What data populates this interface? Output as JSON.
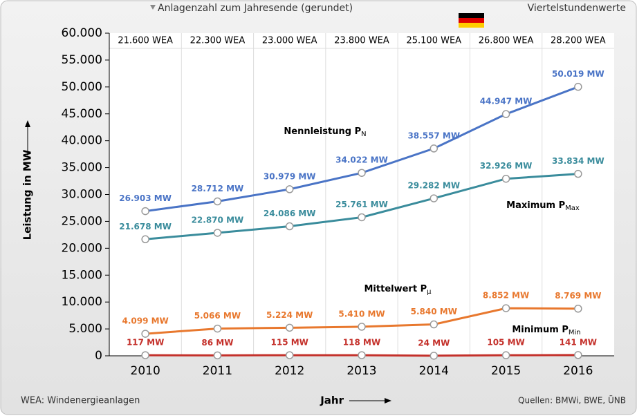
{
  "chart_data": {
    "type": "line",
    "header_left": "Anlagenzahl zum Jahresende (gerundet)",
    "header_right": "Viertelstundenwerte",
    "plant_counts": [
      "21.600 WEA",
      "22.300 WEA",
      "23.000 WEA",
      "23.800 WEA",
      "25.100 WEA",
      "26.800 WEA",
      "28.200 WEA"
    ],
    "y_label": "Leistung in MW",
    "x_label": "Jahr",
    "footnote": "WEA: Windenergieanlagen",
    "source": "Quellen: BMWi, BWE, ÜNB",
    "categories": [
      "2010",
      "2011",
      "2012",
      "2013",
      "2014",
      "2015",
      "2016"
    ],
    "ylim": [
      0,
      60000
    ],
    "yticks": [
      0,
      {
        "value": 5000,
        "label": "5.000"
      },
      {
        "value": 10000,
        "label": "10.000"
      },
      {
        "value": 15000,
        "label": "15.000"
      },
      {
        "value": 20000,
        "label": "20.000"
      },
      {
        "value": 25000,
        "label": "25.000"
      },
      {
        "value": 30000,
        "label": "30.000"
      },
      {
        "value": 35000,
        "label": "35.000"
      },
      {
        "value": 40000,
        "label": "40.000"
      },
      {
        "value": 45000,
        "label": "45.000"
      },
      {
        "value": 50000,
        "label": "50.000"
      },
      {
        "value": 55000,
        "label": "55.000"
      },
      {
        "value": 60000,
        "label": "60.000"
      }
    ],
    "grid": false,
    "series": [
      {
        "name": "Nennleistung P",
        "subscript": "N",
        "color": "#4a74c6",
        "values": [
          26903,
          28712,
          30979,
          34022,
          38557,
          44947,
          50019
        ],
        "value_labels": [
          "26.903 MW",
          "28.712 MW",
          "30.979 MW",
          "34.022 MW",
          "38.557 MW",
          "44.947 MW",
          "50.019 MW"
        ]
      },
      {
        "name": "Maximum P",
        "subscript": "Max",
        "color": "#3a8c9c",
        "values": [
          21678,
          22870,
          24086,
          25761,
          29282,
          32926,
          33834
        ],
        "value_labels": [
          "21.678 MW",
          "22.870 MW",
          "24.086 MW",
          "25.761 MW",
          "29.282 MW",
          "32.926 MW",
          "33.834 MW"
        ]
      },
      {
        "name": "Mittelwert P",
        "subscript": "μ",
        "color": "#e8782e",
        "values": [
          4099,
          5066,
          5224,
          5410,
          5840,
          8852,
          8769
        ],
        "value_labels": [
          "4.099 MW",
          "5.066 MW",
          "5.224 MW",
          "5.410 MW",
          "5.840 MW",
          "8.852 MW",
          "8.769 MW"
        ]
      },
      {
        "name": "Minimum P",
        "subscript": "Min",
        "color": "#c4302a",
        "values": [
          117,
          86,
          115,
          118,
          24,
          105,
          141
        ],
        "value_labels": [
          "117 MW",
          "86 MW",
          "115 MW",
          "118 MW",
          "24 MW",
          "105 MW",
          "141 MW"
        ]
      }
    ]
  }
}
